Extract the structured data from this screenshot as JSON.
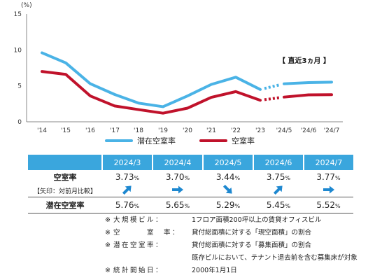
{
  "chart_data": {
    "type": "line",
    "y_unit": "(%)",
    "ylim": [
      0,
      15
    ],
    "yticks": [
      0,
      5,
      10,
      15
    ],
    "categories": [
      "'14",
      "'15",
      "'16",
      "'17",
      "'18",
      "'19",
      "'20",
      "'21",
      "'22",
      "'23",
      "'24/5",
      "'24/6",
      "'24/7"
    ],
    "recent_label": "【 直近3ヵ月 】",
    "series": [
      {
        "name": "潜在空室率",
        "color": "#4ab3e6",
        "annual": [
          9.6,
          8.2,
          5.3,
          3.8,
          2.6,
          2.1,
          3.6,
          5.2,
          6.2,
          4.5
        ],
        "recent": [
          5.29,
          5.45,
          5.52
        ]
      },
      {
        "name": "空室率",
        "color": "#c0122b",
        "annual": [
          7.0,
          6.6,
          3.6,
          2.2,
          1.7,
          1.2,
          1.9,
          3.4,
          4.2,
          3.0
        ],
        "recent": [
          3.44,
          3.75,
          3.77
        ]
      }
    ],
    "grid": false,
    "legend_position": "bottom"
  },
  "table": {
    "row_label_vacancy": "空室率",
    "row_label_arrow_note": "【矢印：対前月比較】",
    "row_label_potential": "潜在空室率",
    "months": [
      {
        "label": "2024/3",
        "vacancy": "3.73",
        "arrow": "up",
        "potential": "5.76"
      },
      {
        "label": "2024/4",
        "vacancy": "3.70",
        "arrow": "right",
        "potential": "5.65"
      },
      {
        "label": "2024/5",
        "vacancy": "3.44",
        "arrow": "down",
        "potential": "5.29"
      },
      {
        "label": "2024/6",
        "vacancy": "3.75",
        "arrow": "up",
        "potential": "5.45"
      },
      {
        "label": "2024/7",
        "vacancy": "3.77",
        "arrow": "right",
        "potential": "5.52"
      }
    ],
    "pct_sign": "%"
  },
  "notes": [
    {
      "mark": "※",
      "label": "大規模ビル：",
      "text": "1フロア面積200坪以上の賃貸オフィスビル"
    },
    {
      "mark": "※",
      "label": "空　　　室　率：",
      "text": "貸付総面積に対する「現空面積」の割合"
    },
    {
      "mark": "※",
      "label": "潜在空室率：",
      "text": "貸付総面積に対する「募集面積」の割合"
    },
    {
      "mark": "",
      "label": "",
      "text": "既存ビルにおいて、テナント退去前を含む募集床が対象"
    },
    {
      "mark": "※",
      "label": "統計開始日：",
      "text": "2000年1月1日"
    }
  ]
}
